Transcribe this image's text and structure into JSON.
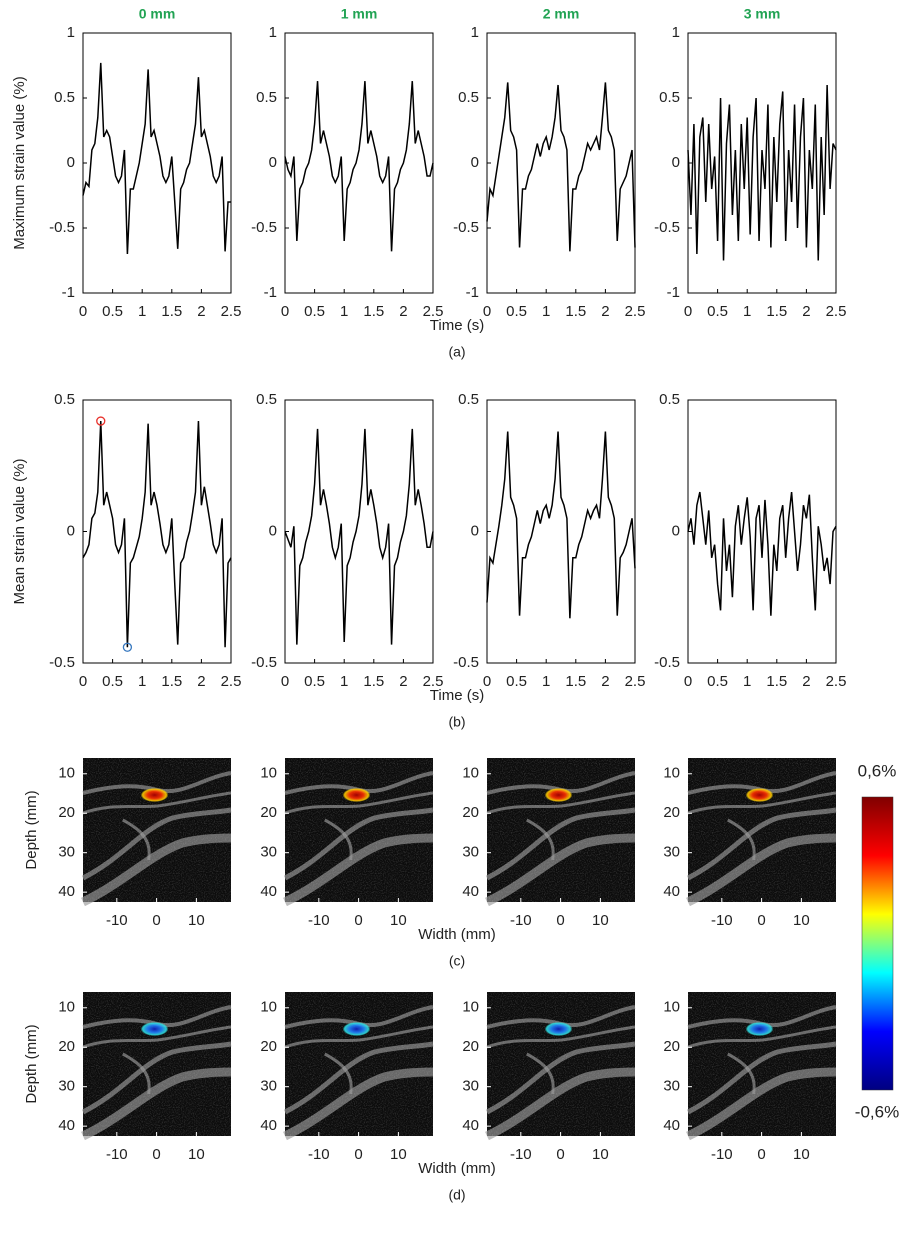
{
  "rows": [
    {
      "ylabel": "Maximum strain value (%)",
      "xlabel": "Time (s)",
      "caption": "(a)"
    },
    {
      "ylabel": "Mean strain value (%)",
      "xlabel": "Time (s)",
      "caption": "(b)"
    },
    {
      "ylabel": "Depth (mm)",
      "xlabel": "Width (mm)",
      "caption": "(c)"
    },
    {
      "ylabel": "Depth (mm)",
      "xlabel": "Width (mm)",
      "caption": "(d)"
    }
  ],
  "colorbar": {
    "max_label": "0,6%",
    "min_label": "-0,6%",
    "colors": [
      "#800000",
      "#ff0000",
      "#ffff00",
      "#00ffff",
      "#0000ff",
      "#000080"
    ]
  },
  "chart_data": [
    {
      "type": "line",
      "title": "0 mm",
      "title_color": "#21a353",
      "color": "#000000",
      "xlim": [
        0,
        2.5
      ],
      "ylim": [
        -1,
        1
      ],
      "xticks": [
        0,
        0.5,
        1,
        1.5,
        2,
        2.5
      ],
      "yticks": [
        -1,
        -0.5,
        0,
        0.5,
        1
      ],
      "x": [
        0,
        0.05,
        0.1,
        0.15,
        0.2,
        0.25,
        0.3,
        0.35,
        0.4,
        0.45,
        0.5,
        0.55,
        0.6,
        0.65,
        0.7,
        0.75,
        0.8,
        0.85,
        0.9,
        0.95,
        1,
        1.05,
        1.1,
        1.15,
        1.2,
        1.25,
        1.3,
        1.35,
        1.4,
        1.45,
        1.5,
        1.55,
        1.6,
        1.65,
        1.7,
        1.75,
        1.8,
        1.85,
        1.9,
        1.95,
        2,
        2.05,
        2.1,
        2.15,
        2.2,
        2.25,
        2.3,
        2.35,
        2.4,
        2.45,
        2.5
      ],
      "values": [
        -0.25,
        -0.15,
        -0.18,
        0.1,
        0.15,
        0.35,
        0.77,
        0.2,
        0.25,
        0.2,
        0.05,
        -0.1,
        -0.15,
        -0.1,
        0.1,
        -0.7,
        -0.2,
        -0.2,
        -0.1,
        0,
        0.15,
        0.3,
        0.72,
        0.2,
        0.25,
        0.15,
        0.05,
        -0.1,
        -0.15,
        -0.1,
        0.05,
        -0.3,
        -0.66,
        -0.2,
        -0.15,
        -0.05,
        0,
        0.15,
        0.3,
        0.66,
        0.2,
        0.25,
        0.15,
        0.05,
        -0.1,
        -0.15,
        -0.1,
        0.05,
        -0.68,
        -0.3,
        -0.3
      ]
    },
    {
      "type": "line",
      "title": "1 mm",
      "title_color": "#21a353",
      "color": "#000000",
      "xlim": [
        0,
        2.5
      ],
      "ylim": [
        -1,
        1
      ],
      "xticks": [
        0,
        0.5,
        1,
        1.5,
        2,
        2.5
      ],
      "yticks": [
        -1,
        -0.5,
        0,
        0.5,
        1
      ],
      "x": [
        0,
        0.05,
        0.1,
        0.15,
        0.2,
        0.25,
        0.3,
        0.35,
        0.4,
        0.45,
        0.5,
        0.55,
        0.6,
        0.65,
        0.7,
        0.75,
        0.8,
        0.85,
        0.9,
        0.95,
        1,
        1.05,
        1.1,
        1.15,
        1.2,
        1.25,
        1.3,
        1.35,
        1.4,
        1.45,
        1.5,
        1.55,
        1.6,
        1.65,
        1.7,
        1.75,
        1.8,
        1.85,
        1.9,
        1.95,
        2,
        2.05,
        2.1,
        2.15,
        2.2,
        2.25,
        2.3,
        2.35,
        2.4,
        2.45,
        2.5
      ],
      "values": [
        0.05,
        -0.05,
        -0.1,
        0.05,
        -0.6,
        -0.2,
        -0.15,
        -0.05,
        0,
        0.1,
        0.3,
        0.63,
        0.15,
        0.25,
        0.15,
        0.05,
        -0.1,
        -0.15,
        -0.1,
        0.05,
        -0.6,
        -0.2,
        -0.15,
        -0.05,
        0,
        0.1,
        0.3,
        0.63,
        0.15,
        0.25,
        0.15,
        0.05,
        -0.1,
        -0.15,
        -0.1,
        0.05,
        -0.68,
        -0.2,
        -0.15,
        -0.05,
        0,
        0.1,
        0.3,
        0.63,
        0.15,
        0.25,
        0.15,
        0.05,
        -0.1,
        -0.1,
        0
      ]
    },
    {
      "type": "line",
      "title": "2 mm",
      "title_color": "#21a353",
      "color": "#000000",
      "xlim": [
        0,
        2.5
      ],
      "ylim": [
        -1,
        1
      ],
      "xticks": [
        0,
        0.5,
        1,
        1.5,
        2,
        2.5
      ],
      "yticks": [
        -1,
        -0.5,
        0,
        0.5,
        1
      ],
      "x": [
        0,
        0.05,
        0.1,
        0.15,
        0.2,
        0.25,
        0.3,
        0.35,
        0.4,
        0.45,
        0.5,
        0.55,
        0.6,
        0.65,
        0.7,
        0.75,
        0.8,
        0.85,
        0.9,
        0.95,
        1,
        1.05,
        1.1,
        1.15,
        1.2,
        1.25,
        1.3,
        1.35,
        1.4,
        1.45,
        1.5,
        1.55,
        1.6,
        1.65,
        1.7,
        1.75,
        1.8,
        1.85,
        1.9,
        1.95,
        2,
        2.05,
        2.1,
        2.15,
        2.2,
        2.25,
        2.3,
        2.35,
        2.4,
        2.45,
        2.5
      ],
      "values": [
        -0.45,
        -0.2,
        -0.25,
        -0.1,
        0.05,
        0.2,
        0.35,
        0.62,
        0.25,
        0.2,
        0.1,
        -0.65,
        -0.2,
        -0.2,
        -0.1,
        -0.05,
        0.05,
        0.15,
        0.05,
        0.15,
        0.2,
        0.1,
        0.2,
        0.35,
        0.6,
        0.25,
        0.2,
        0.1,
        -0.68,
        -0.2,
        -0.2,
        -0.1,
        -0.05,
        0.05,
        0.15,
        0.1,
        0.15,
        0.2,
        0.1,
        0.35,
        0.62,
        0.25,
        0.2,
        0.1,
        -0.6,
        -0.2,
        -0.15,
        -0.1,
        0,
        0.1,
        -0.65
      ]
    },
    {
      "type": "line",
      "title": "3 mm",
      "title_color": "#21a353",
      "color": "#000000",
      "xlim": [
        0,
        2.5
      ],
      "ylim": [
        -1,
        1
      ],
      "xticks": [
        0,
        0.5,
        1,
        1.5,
        2,
        2.5
      ],
      "yticks": [
        -1,
        -0.5,
        0,
        0.5,
        1
      ],
      "x": [
        0,
        0.05,
        0.1,
        0.15,
        0.2,
        0.25,
        0.3,
        0.35,
        0.4,
        0.45,
        0.5,
        0.55,
        0.6,
        0.65,
        0.7,
        0.75,
        0.8,
        0.85,
        0.9,
        0.95,
        1,
        1.05,
        1.1,
        1.15,
        1.2,
        1.25,
        1.3,
        1.35,
        1.4,
        1.45,
        1.5,
        1.55,
        1.6,
        1.65,
        1.7,
        1.75,
        1.8,
        1.85,
        1.9,
        1.95,
        2,
        2.05,
        2.1,
        2.15,
        2.2,
        2.25,
        2.3,
        2.35,
        2.4,
        2.45,
        2.5
      ],
      "values": [
        0.1,
        -0.4,
        0.3,
        -0.7,
        0.2,
        0.35,
        -0.3,
        0.3,
        -0.2,
        0.05,
        -0.6,
        0.5,
        -0.75,
        0.15,
        0.45,
        -0.4,
        0.1,
        -0.6,
        0.3,
        -0.2,
        0.35,
        -0.55,
        0.2,
        0.5,
        -0.6,
        0.1,
        -0.2,
        0.45,
        -0.65,
        0.2,
        -0.3,
        0.3,
        0.55,
        -0.6,
        0.1,
        -0.3,
        0.45,
        -0.5,
        0.2,
        0.5,
        -0.65,
        0.1,
        -0.2,
        0.45,
        -0.75,
        0.2,
        -0.4,
        0.6,
        -0.2,
        0.15,
        0.1
      ]
    },
    {
      "type": "line",
      "color": "#000000",
      "xlim": [
        0,
        2.5
      ],
      "ylim": [
        -0.5,
        0.5
      ],
      "xticks": [
        0,
        0.5,
        1,
        1.5,
        2,
        2.5
      ],
      "yticks": [
        -0.5,
        0,
        0.5
      ],
      "x": [
        0,
        0.05,
        0.1,
        0.15,
        0.2,
        0.25,
        0.3,
        0.35,
        0.4,
        0.45,
        0.5,
        0.55,
        0.6,
        0.65,
        0.7,
        0.75,
        0.8,
        0.85,
        0.9,
        0.95,
        1,
        1.05,
        1.1,
        1.15,
        1.2,
        1.25,
        1.3,
        1.35,
        1.4,
        1.45,
        1.5,
        1.55,
        1.6,
        1.65,
        1.7,
        1.75,
        1.8,
        1.85,
        1.9,
        1.95,
        2,
        2.05,
        2.1,
        2.15,
        2.2,
        2.25,
        2.3,
        2.35,
        2.4,
        2.45,
        2.5
      ],
      "values": [
        -0.1,
        -0.08,
        -0.05,
        0.05,
        0.07,
        0.15,
        0.42,
        0.1,
        0.15,
        0.1,
        0.05,
        -0.05,
        -0.08,
        -0.05,
        0.05,
        -0.44,
        -0.12,
        -0.1,
        -0.06,
        -0.02,
        0.05,
        0.15,
        0.41,
        0.1,
        0.15,
        0.1,
        0.03,
        -0.05,
        -0.08,
        -0.05,
        0.05,
        -0.2,
        -0.43,
        -0.12,
        -0.1,
        -0.04,
        0,
        0.07,
        0.15,
        0.42,
        0.1,
        0.17,
        0.1,
        0.03,
        -0.05,
        -0.08,
        -0.05,
        0.05,
        -0.44,
        -0.12,
        -0.1
      ],
      "markers": [
        {
          "x": 0.3,
          "y": 0.42,
          "color": "#e8302a"
        },
        {
          "x": 0.75,
          "y": -0.44,
          "color": "#3778bf"
        }
      ]
    },
    {
      "type": "line",
      "color": "#000000",
      "xlim": [
        0,
        2.5
      ],
      "ylim": [
        -0.5,
        0.5
      ],
      "xticks": [
        0,
        0.5,
        1,
        1.5,
        2,
        2.5
      ],
      "yticks": [
        -0.5,
        0,
        0.5
      ],
      "x": [
        0,
        0.05,
        0.1,
        0.15,
        0.2,
        0.25,
        0.3,
        0.35,
        0.4,
        0.45,
        0.5,
        0.55,
        0.6,
        0.65,
        0.7,
        0.75,
        0.8,
        0.85,
        0.9,
        0.95,
        1,
        1.05,
        1.1,
        1.15,
        1.2,
        1.25,
        1.3,
        1.35,
        1.4,
        1.45,
        1.5,
        1.55,
        1.6,
        1.65,
        1.7,
        1.75,
        1.8,
        1.85,
        1.9,
        1.95,
        2,
        2.05,
        2.1,
        2.15,
        2.2,
        2.25,
        2.3,
        2.35,
        2.4,
        2.45,
        2.5
      ],
      "values": [
        0,
        -0.03,
        -0.06,
        0.02,
        -0.43,
        -0.13,
        -0.1,
        -0.04,
        0,
        0.06,
        0.18,
        0.39,
        0.1,
        0.16,
        0.1,
        0.03,
        -0.06,
        -0.1,
        -0.06,
        0.03,
        -0.42,
        -0.13,
        -0.1,
        -0.04,
        0,
        0.06,
        0.18,
        0.39,
        0.1,
        0.16,
        0.1,
        0.03,
        -0.06,
        -0.1,
        -0.06,
        0.03,
        -0.43,
        -0.13,
        -0.1,
        -0.04,
        0,
        0.06,
        0.18,
        0.39,
        0.1,
        0.16,
        0.1,
        0.03,
        -0.06,
        -0.06,
        0
      ]
    },
    {
      "type": "line",
      "color": "#000000",
      "xlim": [
        0,
        2.5
      ],
      "ylim": [
        -0.5,
        0.5
      ],
      "xticks": [
        0,
        0.5,
        1,
        1.5,
        2,
        2.5
      ],
      "yticks": [
        -0.5,
        0,
        0.5
      ],
      "x": [
        0,
        0.05,
        0.1,
        0.15,
        0.2,
        0.25,
        0.3,
        0.35,
        0.4,
        0.45,
        0.5,
        0.55,
        0.6,
        0.65,
        0.7,
        0.75,
        0.8,
        0.85,
        0.9,
        0.95,
        1,
        1.05,
        1.1,
        1.15,
        1.2,
        1.25,
        1.3,
        1.35,
        1.4,
        1.45,
        1.5,
        1.55,
        1.6,
        1.65,
        1.7,
        1.75,
        1.8,
        1.85,
        1.9,
        1.95,
        2,
        2.05,
        2.1,
        2.15,
        2.2,
        2.25,
        2.3,
        2.35,
        2.4,
        2.45,
        2.5
      ],
      "values": [
        -0.27,
        -0.1,
        -0.12,
        -0.05,
        0.02,
        0.1,
        0.2,
        0.38,
        0.13,
        0.1,
        0.05,
        -0.32,
        -0.1,
        -0.1,
        -0.05,
        -0.02,
        0.03,
        0.08,
        0.03,
        0.08,
        0.1,
        0.05,
        0.1,
        0.2,
        0.38,
        0.13,
        0.1,
        0.05,
        -0.33,
        -0.1,
        -0.1,
        -0.05,
        -0.02,
        0.03,
        0.08,
        0.05,
        0.08,
        0.1,
        0.05,
        0.2,
        0.38,
        0.13,
        0.1,
        0.05,
        -0.32,
        -0.1,
        -0.08,
        -0.05,
        0,
        0.05,
        -0.14
      ]
    },
    {
      "type": "line",
      "color": "#000000",
      "xlim": [
        0,
        2.5
      ],
      "ylim": [
        -0.5,
        0.5
      ],
      "xticks": [
        0,
        0.5,
        1,
        1.5,
        2,
        2.5
      ],
      "yticks": [
        -0.5,
        0,
        0.5
      ],
      "x": [
        0,
        0.05,
        0.1,
        0.15,
        0.2,
        0.25,
        0.3,
        0.35,
        0.4,
        0.45,
        0.5,
        0.55,
        0.6,
        0.65,
        0.7,
        0.75,
        0.8,
        0.85,
        0.9,
        0.95,
        1,
        1.05,
        1.1,
        1.15,
        1.2,
        1.25,
        1.3,
        1.35,
        1.4,
        1.45,
        1.5,
        1.55,
        1.6,
        1.65,
        1.7,
        1.75,
        1.8,
        1.85,
        1.9,
        1.95,
        2,
        2.05,
        2.1,
        2.15,
        2.2,
        2.25,
        2.3,
        2.35,
        2.4,
        2.45,
        2.5
      ],
      "values": [
        0,
        0.05,
        -0.05,
        0.1,
        0.15,
        0.05,
        -0.05,
        0.08,
        -0.1,
        -0.05,
        -0.2,
        -0.3,
        0.05,
        -0.15,
        -0.05,
        -0.25,
        0.02,
        0.1,
        -0.05,
        0.05,
        0.13,
        -0.02,
        -0.3,
        0.05,
        0.1,
        -0.1,
        0.12,
        -0.05,
        -0.32,
        -0.05,
        -0.15,
        0.05,
        0.1,
        -0.1,
        0.05,
        0.15,
        0,
        -0.15,
        -0.05,
        0.1,
        0.05,
        0.14,
        -0.1,
        -0.3,
        0.02,
        -0.05,
        -0.15,
        -0.1,
        -0.2,
        0,
        0.02
      ]
    },
    {
      "type": "image",
      "y_reversed": true,
      "xlim": [
        -18.5,
        18.7
      ],
      "ylim": [
        6,
        42.5
      ],
      "xticks": [
        -10,
        0,
        10
      ],
      "yticks": [
        10,
        20,
        30,
        40
      ]
    },
    {
      "type": "image",
      "y_reversed": true,
      "xlim": [
        -18.5,
        18.7
      ],
      "ylim": [
        6,
        42.5
      ],
      "xticks": [
        -10,
        0,
        10
      ],
      "yticks": [
        10,
        20,
        30,
        40
      ]
    },
    {
      "type": "image",
      "y_reversed": true,
      "xlim": [
        -18.5,
        18.7
      ],
      "ylim": [
        6,
        42.5
      ],
      "xticks": [
        -10,
        0,
        10
      ],
      "yticks": [
        10,
        20,
        30,
        40
      ]
    },
    {
      "type": "image",
      "y_reversed": true,
      "xlim": [
        -18.5,
        18.7
      ],
      "ylim": [
        6,
        42.5
      ],
      "xticks": [
        -10,
        0,
        10
      ],
      "yticks": [
        10,
        20,
        30,
        40
      ]
    },
    {
      "type": "image",
      "y_reversed": true,
      "xlim": [
        -18.5,
        18.7
      ],
      "ylim": [
        6,
        42.5
      ],
      "xticks": [
        -10,
        0,
        10
      ],
      "yticks": [
        10,
        20,
        30,
        40
      ]
    },
    {
      "type": "image",
      "y_reversed": true,
      "xlim": [
        -18.5,
        18.7
      ],
      "ylim": [
        6,
        42.5
      ],
      "xticks": [
        -10,
        0,
        10
      ],
      "yticks": [
        10,
        20,
        30,
        40
      ]
    },
    {
      "type": "image",
      "y_reversed": true,
      "xlim": [
        -18.5,
        18.7
      ],
      "ylim": [
        6,
        42.5
      ],
      "xticks": [
        -10,
        0,
        10
      ],
      "yticks": [
        10,
        20,
        30,
        40
      ]
    },
    {
      "type": "image",
      "y_reversed": true,
      "xlim": [
        -18.5,
        18.7
      ],
      "ylim": [
        6,
        42.5
      ],
      "xticks": [
        -10,
        0,
        10
      ],
      "yticks": [
        10,
        20,
        30,
        40
      ]
    }
  ]
}
